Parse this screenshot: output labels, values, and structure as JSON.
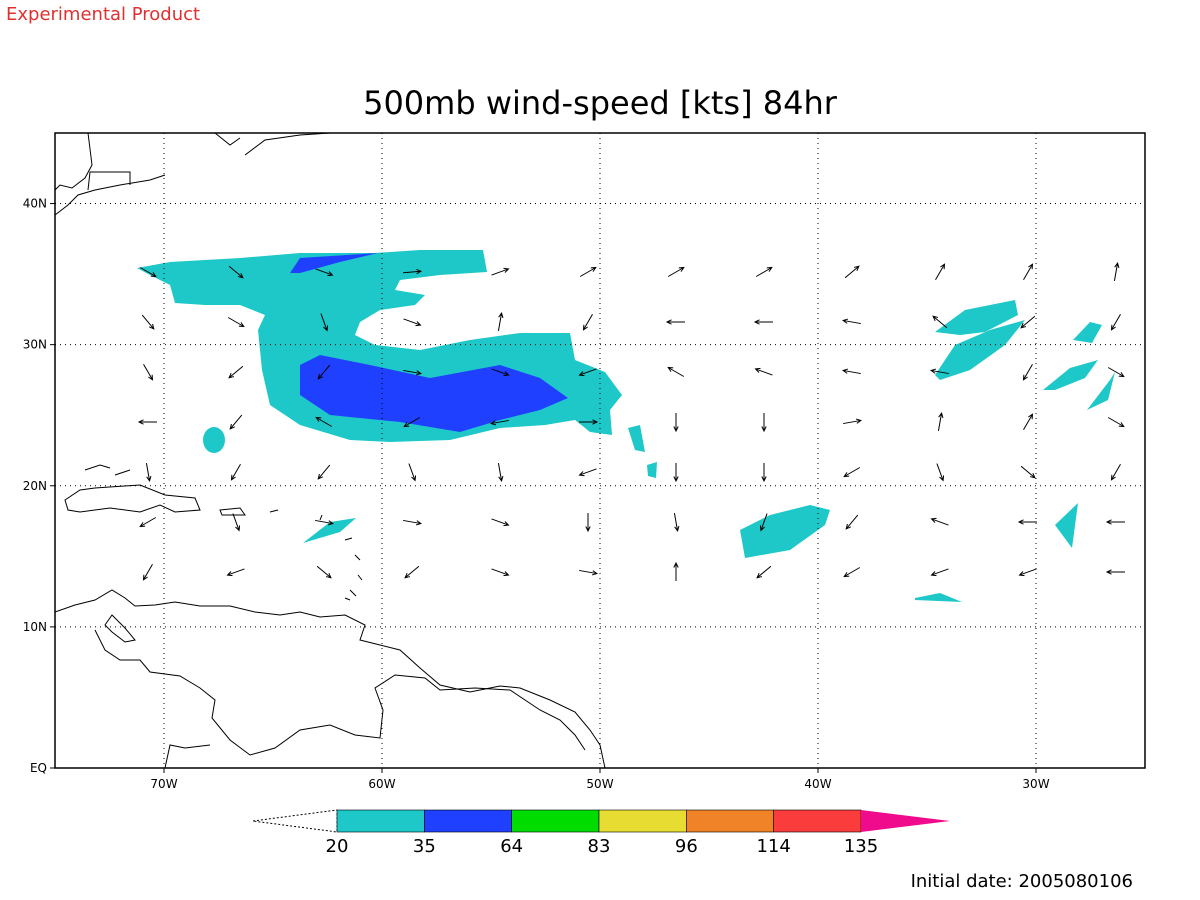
{
  "header": {
    "note": "Experimental Product",
    "title": "500mb wind-speed [kts] 84hr"
  },
  "map": {
    "lonlim": [
      -75,
      -25
    ],
    "latlim": [
      0,
      45
    ],
    "lon_ticks": [
      {
        "value": -70,
        "label": "70W"
      },
      {
        "value": -60,
        "label": "60W"
      },
      {
        "value": -50,
        "label": "50W"
      },
      {
        "value": -40,
        "label": "40W"
      },
      {
        "value": -30,
        "label": "30W"
      }
    ],
    "lat_ticks": [
      {
        "value": 0,
        "label": "EQ"
      },
      {
        "value": 10,
        "label": "10N"
      },
      {
        "value": 20,
        "label": "20N"
      },
      {
        "value": 30,
        "label": "30N"
      },
      {
        "value": 40,
        "label": "40N"
      }
    ]
  },
  "colorbar": {
    "levels": [
      20,
      35,
      64,
      83,
      96,
      114,
      135
    ],
    "colors": [
      "#1ec8c8",
      "#2040ff",
      "#00dc00",
      "#e6dc32",
      "#f08228",
      "#fa3c3c",
      "#f00a8c"
    ]
  },
  "footer": {
    "initial_date": "Initial date: 2005080106"
  }
}
